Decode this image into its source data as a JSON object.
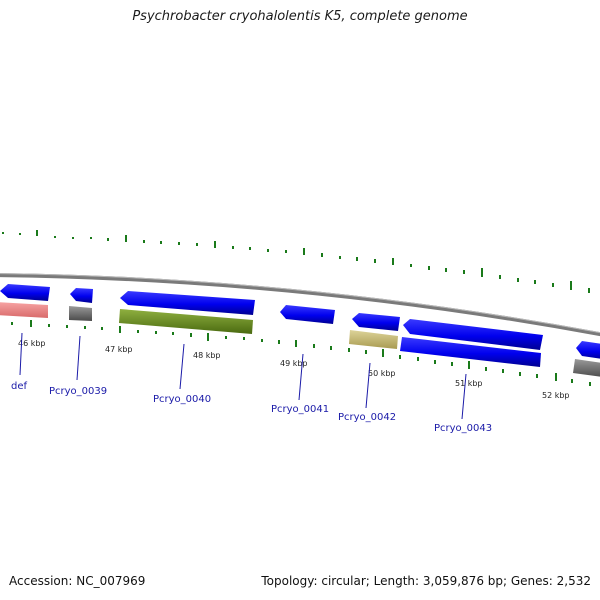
{
  "title": "Psychrobacter cryohalolentis K5, complete genome",
  "footer": {
    "accession": "Accession: NC_007969",
    "summary": "Topology: circular; Length: 3,059,876 bp; Genes: 2,532"
  },
  "scale_labels": [
    "46 kbp",
    "47 kbp",
    "48 kbp",
    "49 kbp",
    "50 kbp",
    "51 kbp",
    "52 kbp"
  ],
  "gene_labels": [
    "def",
    "Pcryo_0039",
    "Pcryo_0040",
    "Pcryo_0041",
    "Pcryo_0042",
    "Pcryo_0043"
  ],
  "colors": {
    "backbone": "#808080",
    "cds": "#0000ee",
    "tick": "#1a7a1a",
    "label": "#1a1aa8",
    "gene_pink": "#f08080",
    "gene_gray": "#707070",
    "gene_olive": "#6b8e23",
    "gene_khaki": "#c8bd78"
  }
}
